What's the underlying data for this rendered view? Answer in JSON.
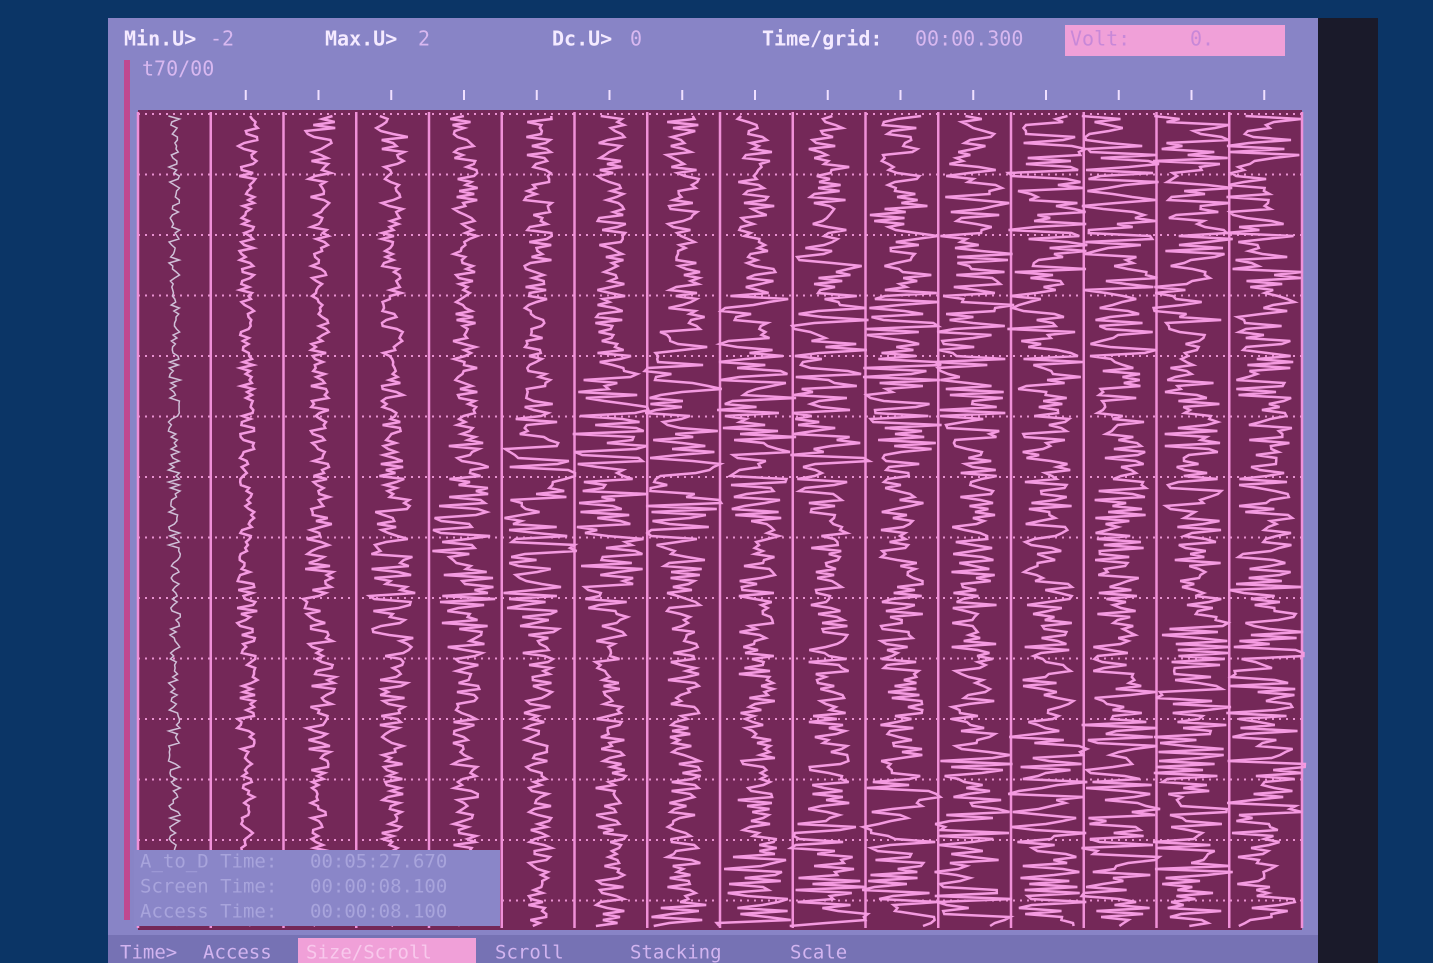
{
  "header": {
    "min_label": "Min.U>",
    "min_value": "-2",
    "max_label": "Max.U>",
    "max_value": "2",
    "dc_label": "Dc.U>",
    "dc_value": "0",
    "time_grid_label": "Time/grid:",
    "time_grid_value": "00:00.300",
    "volt_label": "Volt:",
    "volt_value": "0."
  },
  "trace_label": "t70/00",
  "info": [
    {
      "label": "A_to_D Time:",
      "value": "00:05:27.670"
    },
    {
      "label": "Screen Time:",
      "value": "00:00:08.100"
    },
    {
      "label": "Access Time:",
      "value": "00:00:08.100"
    }
  ],
  "menu": [
    "Time>",
    "Access",
    "Size/Scroll",
    "Scroll",
    "Stacking",
    "Scale"
  ]
}
